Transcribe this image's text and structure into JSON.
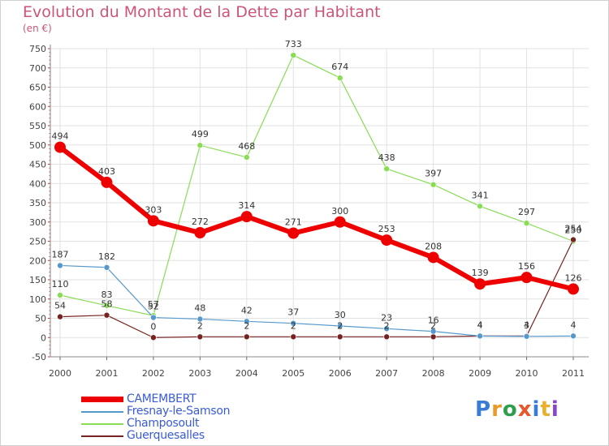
{
  "title": "Evolution du Montant de la Dette par Habitant",
  "subtitle": "(en €)",
  "logo": {
    "text": "Proxiti",
    "colors": [
      "#3a7bd5",
      "#e89a2b",
      "#2e9e4e",
      "#e8572b",
      "#3a7bd5",
      "#e8b02b",
      "#8a44c8"
    ]
  },
  "chart_data": {
    "type": "line",
    "title": "Evolution du Montant de la Dette par Habitant",
    "ylabel": "(en €)",
    "xlabel": "",
    "x": [
      "2000",
      "2001",
      "2002",
      "2003",
      "2004",
      "2005",
      "2006",
      "2007",
      "2008",
      "2009",
      "2010",
      "2011"
    ],
    "ylim": [
      -50,
      750
    ],
    "yticks": [
      -50,
      0,
      50,
      100,
      150,
      200,
      250,
      300,
      350,
      400,
      450,
      500,
      550,
      600,
      650,
      700,
      750
    ],
    "grid": true,
    "legend": "bottom-left",
    "series": [
      {
        "name": "CAMEMBERT",
        "color": "#ee0000",
        "values": [
          494,
          403,
          303,
          272,
          314,
          271,
          300,
          253,
          208,
          139,
          156,
          126
        ]
      },
      {
        "name": "Fresnay-le-Samson",
        "color": "#5599cc",
        "values": [
          187,
          182,
          52,
          48,
          42,
          37,
          30,
          23,
          16,
          4,
          3,
          4
        ]
      },
      {
        "name": "Champosoult",
        "color": "#88dd55",
        "values": [
          110,
          83,
          57,
          499,
          468,
          733,
          674,
          438,
          397,
          341,
          297,
          250
        ]
      },
      {
        "name": "Guerquesalles",
        "color": "#772222",
        "values": [
          54,
          58,
          0,
          2,
          2,
          2,
          2,
          2,
          2,
          4,
          4,
          254
        ]
      }
    ],
    "data_labels": [
      [
        "494",
        "403",
        "303",
        "272",
        "314",
        "271",
        "300",
        "253",
        "208",
        "139",
        "156",
        "126"
      ],
      [
        "187",
        "182",
        "52",
        "48",
        "42",
        "37",
        "30",
        "23",
        "16",
        "4",
        "3",
        "4"
      ],
      [
        "110",
        "83",
        "57",
        "499",
        "468",
        "733",
        "674",
        "438",
        "397",
        "341",
        "297",
        "250"
      ],
      [
        "54",
        "58",
        "0",
        "2",
        "2",
        "2",
        "2",
        "2",
        "2",
        "4",
        "4",
        "254"
      ]
    ]
  }
}
